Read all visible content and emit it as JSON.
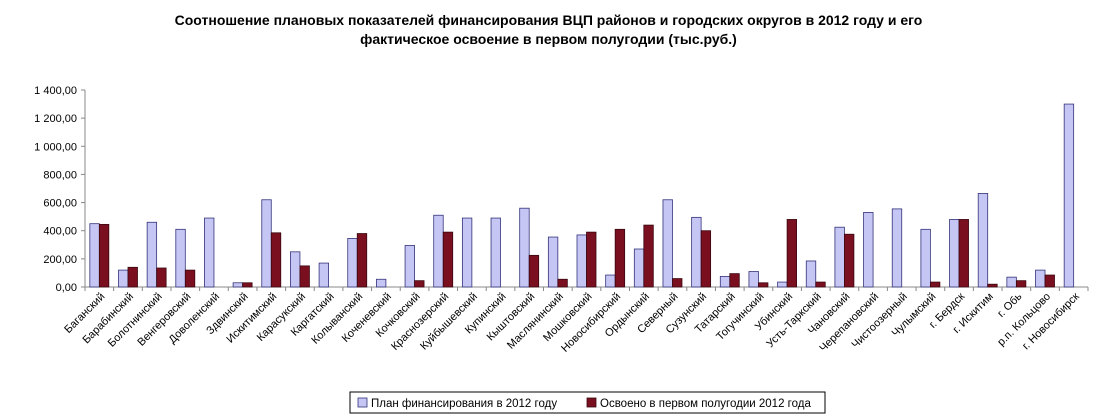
{
  "chart_data": {
    "type": "bar",
    "title_line1": "Соотношение плановых показателей финансирования ВЦП районов и городских округов в 2012 году и его",
    "title_line2": "фактическое освоение в первом полугодии (тыс.руб.)",
    "xlabel": "",
    "ylabel": "",
    "ylim": [
      0,
      1400
    ],
    "yticks": [
      0,
      200,
      400,
      600,
      800,
      1000,
      1200,
      1400
    ],
    "ytick_labels": [
      "0,00",
      "200,00",
      "400,00",
      "600,00",
      "800,00",
      "1 000,00",
      "1 200,00",
      "1 400,00"
    ],
    "grid": false,
    "legend_position": "bottom",
    "categories": [
      "Баганский",
      "Барабинский",
      "Болотнинский",
      "Венгеровский",
      "Доволенский",
      "Здвинский",
      "Искитимский",
      "Карасукский",
      "Каргатский",
      "Колыванский",
      "Коченевский",
      "Кочковский",
      "Краснозерский",
      "Куйбышевский",
      "Купинский",
      "Кыштовский",
      "Маслянинский",
      "Мошковский",
      "Новосибирский",
      "Ордынский",
      "Северный",
      "Сузунский",
      "Татарский",
      "Тогучинский",
      "Убинский",
      "Усть-Таркский",
      "Чановский",
      "Черепановский",
      "Чистоозерный",
      "Чулымский",
      "г. Бердск",
      "г. Искитим",
      "г. Обь",
      "р.п. Кольцово",
      "г. Новосибирск"
    ],
    "series": [
      {
        "name": "План финансирования в 2012 году",
        "color": "#C6C6F5",
        "values": [
          450,
          120,
          460,
          410,
          490,
          30,
          620,
          250,
          170,
          345,
          55,
          295,
          510,
          490,
          490,
          560,
          355,
          370,
          85,
          270,
          620,
          495,
          75,
          110,
          35,
          185,
          425,
          530,
          555,
          410,
          480,
          665,
          70,
          120,
          1300
        ]
      },
      {
        "name": "Освоено в первом полугодии 2012 года",
        "color": "#7A0F20",
        "values": [
          445,
          140,
          135,
          120,
          0,
          30,
          385,
          150,
          0,
          380,
          0,
          45,
          390,
          0,
          0,
          225,
          55,
          390,
          410,
          440,
          60,
          400,
          95,
          30,
          480,
          35,
          375,
          0,
          0,
          35,
          480,
          20,
          45,
          85,
          0
        ]
      }
    ]
  }
}
